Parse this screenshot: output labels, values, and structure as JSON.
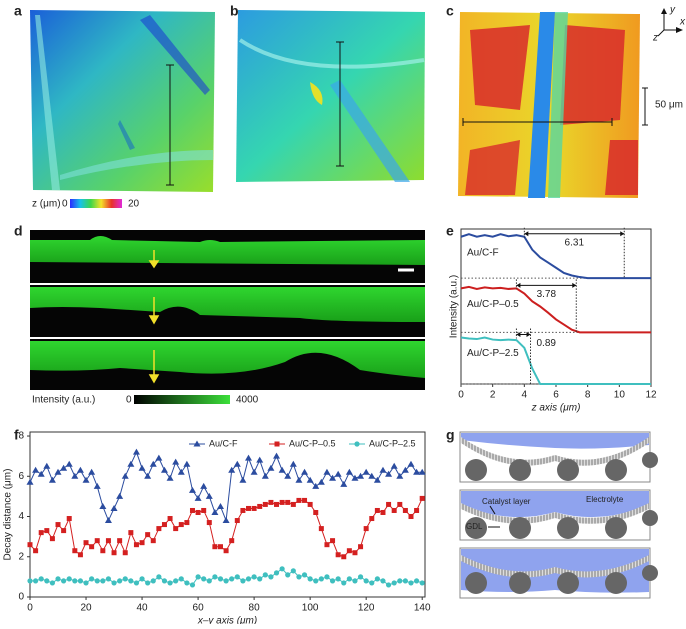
{
  "panel_letters": [
    "a",
    "b",
    "c",
    "d",
    "e",
    "f",
    "g"
  ],
  "panel_c": {
    "axes": [
      "y",
      "x",
      "z"
    ],
    "scale_bar": "50 μm"
  },
  "height_colorbar": {
    "label": "z (μm)",
    "min": 0,
    "max": 20
  },
  "intensity_colorbar": {
    "label": "Intensity (a.u.)",
    "min": 0,
    "max": 4000
  },
  "chart_data": [
    {
      "type": "line",
      "xlabel": "z axis (μm)",
      "ylabel": "Intensity (a.u.)",
      "xlim": [
        0,
        12
      ],
      "xticks": [
        0,
        2,
        4,
        6,
        8,
        10,
        12
      ],
      "ylim": [
        0,
        3
      ],
      "x": [
        0,
        0.5,
        1,
        1.5,
        2,
        2.5,
        3,
        3.5,
        4,
        4.5,
        5,
        5.5,
        6,
        6.5,
        7,
        7.5,
        8,
        8.5,
        9,
        9.5,
        10,
        10.5,
        11,
        11.5,
        12
      ],
      "series": [
        {
          "name": "Au/C-F",
          "color": "#2b4c9f",
          "values": [
            2.85,
            2.9,
            2.85,
            2.88,
            2.85,
            2.9,
            2.86,
            2.88,
            2.85,
            2.6,
            2.45,
            2.35,
            2.25,
            2.15,
            2.1,
            2.07,
            2.05,
            2.05,
            2.05,
            2.05,
            2.05,
            2.05,
            2.05,
            2.05,
            2.05
          ]
        },
        {
          "name": "Au/C-P–0.5",
          "color": "#cc1f1f",
          "values": [
            1.85,
            1.88,
            1.84,
            1.87,
            1.85,
            1.86,
            1.84,
            1.85,
            1.75,
            1.6,
            1.5,
            1.38,
            1.25,
            1.15,
            1.05,
            1.0,
            1.0,
            1.0,
            1.0,
            1.0,
            1.0,
            1.0,
            1.0,
            1.0,
            1.0
          ]
        },
        {
          "name": "Au/C-P–2.5",
          "color": "#3fbfbf",
          "values": [
            0.9,
            0.88,
            0.87,
            0.9,
            0.86,
            0.85,
            0.86,
            0.85,
            0.7,
            0.3,
            0,
            0,
            0,
            0,
            0,
            0,
            0,
            0,
            0,
            0,
            0,
            0,
            0,
            0,
            0
          ]
        }
      ],
      "annotations": [
        6.31,
        3.78,
        0.89
      ]
    },
    {
      "type": "line",
      "xlabel": "x–y axis (μm)",
      "ylabel": "Decay distance (μm)",
      "xlim": [
        0,
        141
      ],
      "xticks": [
        0,
        20,
        40,
        60,
        80,
        100,
        120,
        140
      ],
      "ylim": [
        0,
        8.2
      ],
      "yticks": [
        0,
        2,
        4,
        6,
        8
      ],
      "legend": "top-right",
      "x": [
        0,
        2,
        4,
        6,
        8,
        10,
        12,
        14,
        16,
        18,
        20,
        22,
        24,
        26,
        28,
        30,
        32,
        34,
        36,
        38,
        40,
        42,
        44,
        46,
        48,
        50,
        52,
        54,
        56,
        58,
        60,
        62,
        64,
        66,
        68,
        70,
        72,
        74,
        76,
        78,
        80,
        82,
        84,
        86,
        88,
        90,
        92,
        94,
        96,
        98,
        100,
        102,
        104,
        106,
        108,
        110,
        112,
        114,
        116,
        118,
        120,
        122,
        124,
        126,
        128,
        130,
        132,
        134,
        136,
        138,
        140
      ],
      "series": [
        {
          "name": "Au/C-F",
          "color": "#2b4c9f",
          "marker": "triangle",
          "values": [
            5.7,
            6.3,
            6.1,
            6.5,
            5.8,
            6.2,
            6.4,
            6.6,
            6.0,
            6.3,
            5.8,
            6.2,
            5.5,
            4.5,
            3.8,
            4.4,
            5.0,
            6.0,
            6.6,
            7.2,
            6.4,
            6.0,
            6.6,
            6.9,
            6.3,
            5.9,
            6.7,
            6.2,
            6.6,
            5.3,
            4.9,
            5.5,
            5.0,
            4.2,
            4.5,
            3.8,
            6.3,
            6.6,
            5.8,
            6.9,
            6.2,
            6.8,
            6.0,
            6.4,
            7.0,
            6.3,
            6.0,
            6.6,
            5.8,
            6.2,
            5.8,
            5.5,
            5.7,
            6.2,
            5.9,
            6.1,
            5.6,
            6.2,
            5.9,
            6.0,
            6.2,
            6.0,
            5.8,
            6.3,
            6.1,
            6.5,
            6.0,
            6.3,
            6.6,
            6.2,
            6.2
          ]
        },
        {
          "name": "Au/C-P–0.5",
          "color": "#d42020",
          "marker": "square",
          "values": [
            2.6,
            2.3,
            3.2,
            3.3,
            2.9,
            3.6,
            3.3,
            3.9,
            2.3,
            2.1,
            2.7,
            2.5,
            2.8,
            2.3,
            2.8,
            2.2,
            2.8,
            2.2,
            3.2,
            2.6,
            2.7,
            3.1,
            2.8,
            3.4,
            3.6,
            3.9,
            3.4,
            3.6,
            3.7,
            4.3,
            4.2,
            4.3,
            3.7,
            2.5,
            2.5,
            2.3,
            2.8,
            3.8,
            4.3,
            4.4,
            4.4,
            4.5,
            4.6,
            4.7,
            4.6,
            4.7,
            4.7,
            4.6,
            4.8,
            4.8,
            4.6,
            4.2,
            3.4,
            2.6,
            2.8,
            2.1,
            2.0,
            2.3,
            2.2,
            2.5,
            3.4,
            3.9,
            4.3,
            4.2,
            4.6,
            4.3,
            4.6,
            4.3,
            4.0,
            4.3,
            4.9
          ]
        },
        {
          "name": "Au/C-P–2.5",
          "color": "#3fbfbf",
          "marker": "circle",
          "values": [
            0.8,
            0.8,
            0.9,
            0.8,
            0.7,
            0.9,
            0.8,
            0.9,
            0.8,
            0.8,
            0.7,
            0.9,
            0.8,
            0.8,
            0.9,
            0.7,
            0.8,
            0.9,
            0.8,
            0.7,
            0.9,
            0.7,
            0.8,
            1.0,
            0.8,
            0.7,
            0.8,
            0.9,
            0.7,
            0.6,
            1.0,
            0.9,
            0.8,
            1.0,
            0.9,
            0.8,
            0.9,
            1.0,
            0.8,
            0.9,
            1.0,
            0.9,
            1.1,
            1.0,
            1.2,
            1.4,
            1.1,
            1.3,
            1.0,
            1.1,
            0.9,
            0.8,
            0.9,
            1.0,
            0.8,
            0.9,
            0.7,
            0.9,
            0.8,
            1.0,
            0.8,
            0.7,
            0.9,
            0.8,
            0.6,
            0.7,
            0.8,
            0.8,
            0.7,
            0.8,
            0.7
          ]
        }
      ]
    }
  ],
  "panel_g": {
    "labels": [
      "Catalyst layer",
      "Electrolyte",
      "GDL"
    ]
  }
}
